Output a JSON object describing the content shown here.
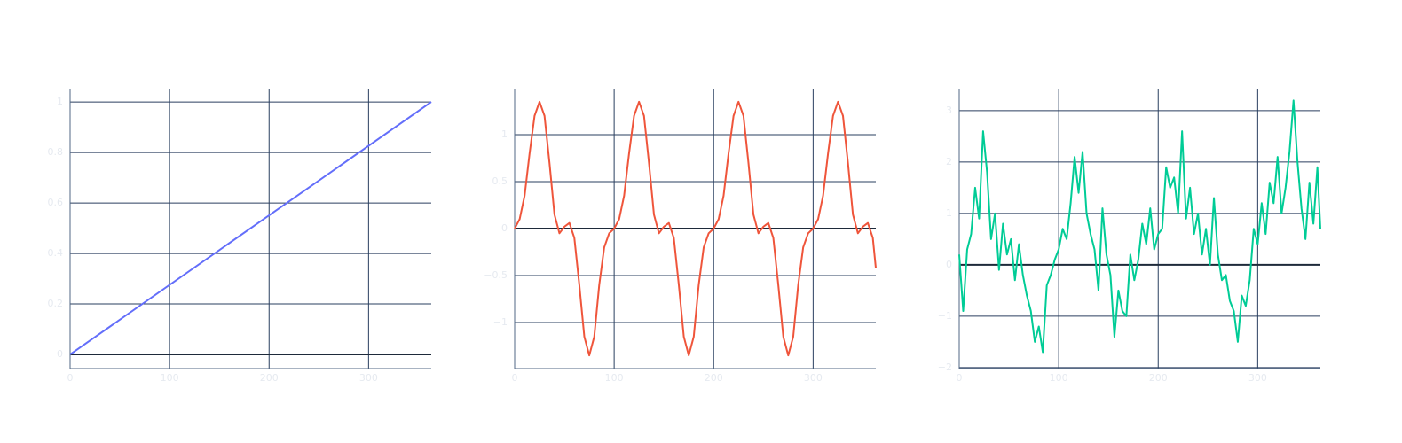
{
  "chart_data": [
    {
      "type": "line",
      "color": "#636efa",
      "grid": true,
      "zeroline": true,
      "x": [
        0,
        363
      ],
      "values": [
        0,
        1
      ],
      "xlim": [
        0,
        363
      ],
      "ylim": [
        -0.056,
        1.053
      ],
      "xticks": [
        0,
        100,
        200,
        300
      ],
      "yticks": [
        0,
        0.2,
        0.4,
        0.6,
        0.8,
        1
      ]
    },
    {
      "type": "line",
      "color": "#ef553b",
      "grid": true,
      "zeroline": true,
      "x": [
        0,
        5,
        10,
        15,
        20,
        25,
        30,
        35,
        40,
        45,
        50,
        55,
        60,
        65,
        70,
        75,
        80,
        85,
        90,
        95,
        100,
        105,
        110,
        115,
        120,
        125,
        130,
        135,
        140,
        145,
        150,
        155,
        160,
        165,
        170,
        175,
        180,
        185,
        190,
        195,
        200,
        205,
        210,
        215,
        220,
        225,
        230,
        235,
        240,
        245,
        250,
        255,
        260,
        265,
        270,
        275,
        280,
        285,
        290,
        295,
        300,
        305,
        310,
        315,
        320,
        325,
        330,
        335,
        340,
        345,
        350,
        355,
        360,
        363
      ],
      "values": [
        0,
        0.1,
        0.35,
        0.8,
        1.2,
        1.35,
        1.2,
        0.7,
        0.15,
        -0.05,
        0.02,
        0.06,
        -0.1,
        -0.6,
        -1.15,
        -1.35,
        -1.15,
        -0.6,
        -0.2,
        -0.05,
        0,
        0.1,
        0.35,
        0.8,
        1.2,
        1.35,
        1.2,
        0.7,
        0.15,
        -0.05,
        0.02,
        0.06,
        -0.1,
        -0.6,
        -1.15,
        -1.35,
        -1.15,
        -0.6,
        -0.2,
        -0.05,
        0,
        0.1,
        0.35,
        0.8,
        1.2,
        1.35,
        1.2,
        0.7,
        0.15,
        -0.05,
        0.02,
        0.06,
        -0.1,
        -0.6,
        -1.15,
        -1.35,
        -1.15,
        -0.6,
        -0.2,
        -0.05,
        0,
        0.1,
        0.35,
        0.8,
        1.2,
        1.35,
        1.2,
        0.7,
        0.15,
        -0.05,
        0.02,
        0.06,
        -0.1,
        -0.42
      ],
      "xlim": [
        0,
        363
      ],
      "ylim": [
        -1.49,
        1.49
      ],
      "xticks": [
        0,
        100,
        200,
        300
      ],
      "yticks": [
        {
          "value": -1,
          "label": "−1"
        },
        {
          "value": -0.5,
          "label": "−0.5"
        },
        0,
        0.5,
        1
      ]
    },
    {
      "type": "line",
      "color": "#00cc96",
      "grid": true,
      "zeroline": true,
      "x": [
        0,
        4,
        8,
        12,
        16,
        20,
        24,
        28,
        32,
        36,
        40,
        44,
        48,
        52,
        56,
        60,
        64,
        68,
        72,
        76,
        80,
        84,
        88,
        92,
        96,
        100,
        104,
        108,
        112,
        116,
        120,
        124,
        128,
        132,
        136,
        140,
        144,
        148,
        152,
        156,
        160,
        164,
        168,
        172,
        176,
        180,
        184,
        188,
        192,
        196,
        200,
        204,
        208,
        212,
        216,
        220,
        224,
        228,
        232,
        236,
        240,
        244,
        248,
        252,
        256,
        260,
        264,
        268,
        272,
        276,
        280,
        284,
        288,
        292,
        296,
        300,
        304,
        308,
        312,
        316,
        320,
        324,
        328,
        332,
        336,
        340,
        344,
        348,
        352,
        356,
        360,
        363
      ],
      "values": [
        0.2,
        -0.9,
        0.3,
        0.6,
        1.5,
        0.9,
        2.6,
        1.8,
        0.5,
        1.0,
        -0.1,
        0.8,
        0.2,
        0.5,
        -0.3,
        0.4,
        -0.2,
        -0.6,
        -0.9,
        -1.5,
        -1.2,
        -1.7,
        -0.4,
        -0.2,
        0.1,
        0.3,
        0.7,
        0.5,
        1.2,
        2.1,
        1.4,
        2.2,
        1.0,
        0.6,
        0.3,
        -0.5,
        1.1,
        0.2,
        -0.2,
        -1.4,
        -0.5,
        -0.9,
        -1.0,
        0.2,
        -0.3,
        0.1,
        0.8,
        0.4,
        1.1,
        0.3,
        0.6,
        0.7,
        1.9,
        1.5,
        1.7,
        1.0,
        2.6,
        0.9,
        1.5,
        0.6,
        1.0,
        0.2,
        0.7,
        0.0,
        1.3,
        0.2,
        -0.3,
        -0.2,
        -0.7,
        -0.9,
        -1.5,
        -0.6,
        -0.8,
        -0.3,
        0.7,
        0.4,
        1.2,
        0.6,
        1.6,
        1.2,
        2.1,
        1.0,
        1.5,
        2.2,
        3.2,
        2.0,
        1.1,
        0.5,
        1.6,
        0.8,
        1.9,
        0.7
      ],
      "xlim": [
        0,
        363
      ],
      "ylim": [
        -2.02,
        3.43
      ],
      "xticks": [
        0,
        100,
        200,
        300
      ],
      "yticks": [
        {
          "value": -2,
          "label": "−2"
        },
        {
          "value": -1,
          "label": "−1"
        },
        0,
        1,
        2,
        3
      ]
    }
  ]
}
